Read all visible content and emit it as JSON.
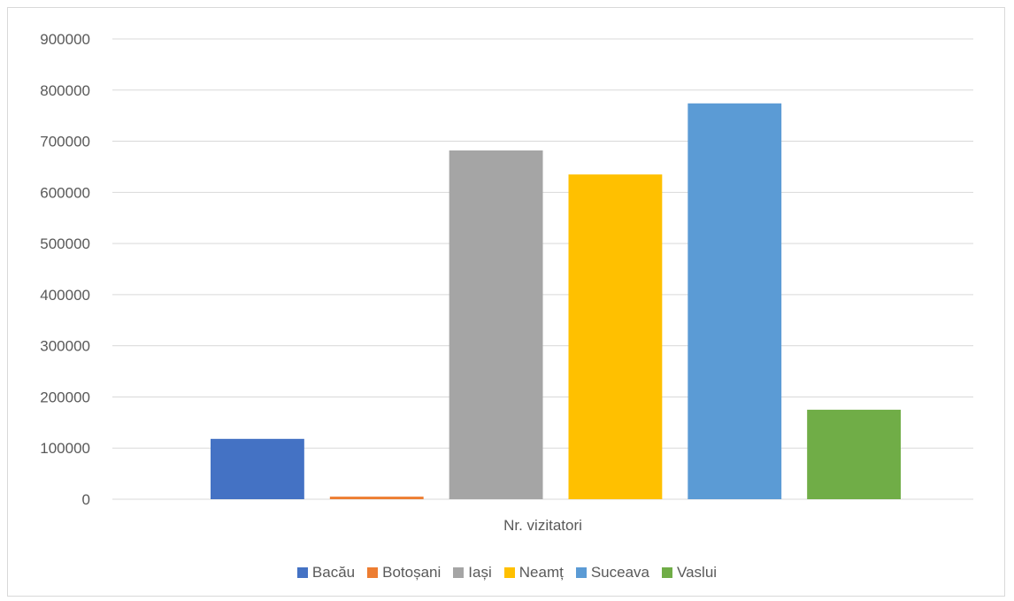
{
  "chart_data": {
    "type": "bar",
    "categories": [
      "Nr. vizitatori"
    ],
    "series": [
      {
        "name": "Bacău",
        "values": [
          118000
        ],
        "color": "#4472C4"
      },
      {
        "name": "Botoșani",
        "values": [
          5000
        ],
        "color": "#ED7D31"
      },
      {
        "name": "Iași",
        "values": [
          682000
        ],
        "color": "#A5A5A5"
      },
      {
        "name": "Neamț",
        "values": [
          635000
        ],
        "color": "#FFC000"
      },
      {
        "name": "Suceava",
        "values": [
          774000
        ],
        "color": "#5B9BD5"
      },
      {
        "name": "Vaslui",
        "values": [
          175000
        ],
        "color": "#70AD47"
      }
    ],
    "yticks": [
      "0",
      "100000",
      "200000",
      "300000",
      "400000",
      "500000",
      "600000",
      "700000",
      "800000",
      "900000"
    ],
    "ylim": [
      0,
      900000
    ],
    "title": "",
    "xlabel": "",
    "ylabel": "",
    "grid": true,
    "legend_position": "bottom"
  },
  "colors": {
    "gridline": "#d9d9d9",
    "text": "#595959",
    "border": "#d9d9d9"
  }
}
